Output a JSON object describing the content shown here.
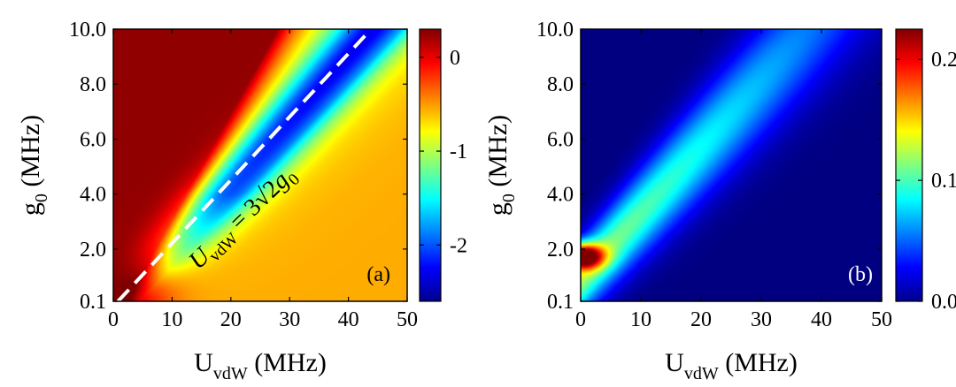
{
  "chart_data": [
    {
      "type": "heatmap",
      "panel_label": "(a)",
      "xlabel_main": "U",
      "xlabel_sub": "vdW",
      "xlabel_unit": " (MHz)",
      "ylabel_main": "g",
      "ylabel_sub": "0",
      "ylabel_unit": " (MHz)",
      "xlim": [
        0,
        50
      ],
      "ylim": [
        0.1,
        10.0
      ],
      "x_ticks": [
        "0",
        "10",
        "20",
        "30",
        "40",
        "50"
      ],
      "y_ticks": [
        "0.1",
        "2.0",
        "4.0",
        "6.0",
        "8.0",
        "10.0"
      ],
      "colorbar_range": [
        -2.6,
        0.3
      ],
      "colorbar_ticks": [
        "0",
        "-1",
        "-2"
      ],
      "colorbar_tick_values": [
        0,
        -1,
        -2
      ],
      "colormap": "jet",
      "grid": false,
      "annotation": {
        "text_main": "U",
        "text_sub": "vdW",
        "text_eq": " = 3",
        "text_sqrt": "√2",
        "text_g": "g",
        "text_g_sub": "0",
        "line": {
          "style": "dashed",
          "color": "#ffffff",
          "from": [
            0.8,
            0.1
          ],
          "to": [
            43.0,
            9.8
          ]
        }
      }
    },
    {
      "type": "heatmap",
      "panel_label": "(b)",
      "xlabel_main": "U",
      "xlabel_sub": "vdW",
      "xlabel_unit": " (MHz)",
      "ylabel_main": "g",
      "ylabel_sub": "0",
      "ylabel_unit": " (MHz)",
      "xlim": [
        0,
        50
      ],
      "ylim": [
        0.1,
        10.0
      ],
      "x_ticks": [
        "0",
        "10",
        "20",
        "30",
        "40",
        "50"
      ],
      "y_ticks": [
        "0.1",
        "2.0",
        "4.0",
        "6.0",
        "8.0",
        "10.0"
      ],
      "colorbar_range": [
        0.0,
        0.225
      ],
      "colorbar_ticks": [
        "0.2",
        "0.1",
        "0.0"
      ],
      "colorbar_tick_values": [
        0.2,
        0.1,
        0.0
      ],
      "colormap": "jet",
      "grid": false
    }
  ]
}
